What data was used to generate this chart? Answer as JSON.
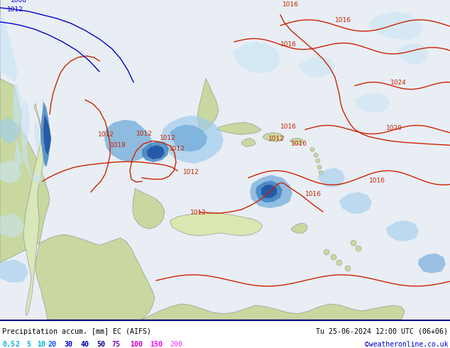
{
  "title_left": "Precipitation accum. [mm] EC (AIFS)",
  "title_right": "Tu 25-06-2024 12:00 UTC (06+06)",
  "credit": "©weatheronline.co.uk",
  "colorbar_values": [
    "0.5",
    "2",
    "5",
    "10",
    "20",
    "30",
    "40",
    "50",
    "75",
    "100",
    "150",
    "200"
  ],
  "colorbar_text_colors": [
    "#00b0f0",
    "#00b0f0",
    "#00b0f0",
    "#00b0f0",
    "#0055ff",
    "#0000cc",
    "#0000aa",
    "#000088",
    "#8800bb",
    "#cc00cc",
    "#ff00ff",
    "#ff66ff"
  ],
  "fig_width": 6.34,
  "fig_height": 4.9,
  "dpi": 100,
  "sea_color": "#e8eef4",
  "land_color": "#c8d8a0",
  "land_color2": "#d8e8b0",
  "prec_light": "#b8daf0",
  "prec_mid": "#80b8e0",
  "prec_dark": "#4090c8",
  "prec_darkest": "#2060a0",
  "credit_color": "#0000cc",
  "border_color": "#000080",
  "pressure_color": "#cc2200",
  "pressure_blue": "#0000cc"
}
